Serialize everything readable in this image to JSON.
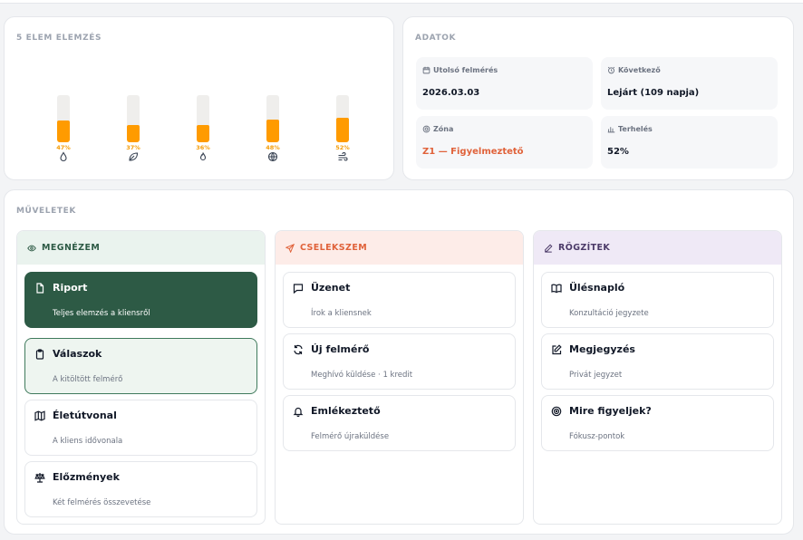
{
  "chart_section": {
    "title": "5 ELEM ELEMZÉS"
  },
  "chart_data": {
    "type": "bar",
    "categories": [
      "Víz",
      "Fa",
      "Tűz",
      "Föld",
      "Fém"
    ],
    "values": [
      47,
      37,
      36,
      48,
      52
    ],
    "labels": [
      "47%",
      "37%",
      "36%",
      "48%",
      "52%"
    ],
    "icons": [
      "water-drop-icon",
      "leaf-icon",
      "flame-icon",
      "globe-icon",
      "wind-icon"
    ],
    "ylim": [
      0,
      100
    ],
    "colors": {
      "fill": "#ff9b00",
      "track": "#efeeec"
    },
    "title": "5 ELEM ELEMZÉS"
  },
  "data_section": {
    "title": "ADATOK",
    "tiles": [
      {
        "label": "Utolsó felmérés",
        "value": "2026.03.03",
        "icon": "calendar-icon"
      },
      {
        "label": "Következő",
        "value": "Lejárt (109 napja)",
        "icon": "alarm-clock-icon"
      },
      {
        "label": "Zóna",
        "value": "Z1 — Figyelmeztető",
        "icon": "target-icon",
        "value_color": "#e0623a"
      },
      {
        "label": "Terhelés",
        "value": "52%",
        "icon": "bar-chart-icon"
      }
    ]
  },
  "operations": {
    "title": "MŰVELETEK",
    "columns": [
      {
        "title": "MEGNÉZEM",
        "icon": "eye-icon",
        "head_bg": "#eaf3ee",
        "head_color": "#2d5a45",
        "items": [
          {
            "title": "Riport",
            "sub": "Teljes elemzés a kliensről",
            "icon": "document-icon"
          },
          {
            "title": "Válaszok",
            "sub": "A kitöltött felmérő",
            "icon": "clipboard-icon"
          },
          {
            "title": "Életútvonal",
            "sub": "A kliens idővonala",
            "icon": "map-icon"
          },
          {
            "title": "Előzmények",
            "sub": "Két felmérés összevetése",
            "icon": "scale-icon"
          }
        ]
      },
      {
        "title": "CSELEKSZEM",
        "icon": "send-icon",
        "head_bg": "#fdece8",
        "head_color": "#e0623a",
        "items": [
          {
            "title": "Üzenet",
            "sub": "Írok a kliensnek",
            "icon": "message-icon"
          },
          {
            "title": "Új felmérő",
            "sub": "Meghívó küldése · 1 kredit",
            "icon": "refresh-icon"
          },
          {
            "title": "Emlékeztető",
            "sub": "Felmérő újraküldése",
            "icon": "bell-icon"
          }
        ]
      },
      {
        "title": "RÖGZÍTEK",
        "icon": "pencil-icon",
        "head_bg": "#efe9f6",
        "head_color": "#4b3a68",
        "items": [
          {
            "title": "Ülésnapló",
            "sub": "Konzultáció jegyzete",
            "icon": "book-icon"
          },
          {
            "title": "Megjegyzés",
            "sub": "Privát jegyzet",
            "icon": "edit-icon"
          },
          {
            "title": "Mire figyeljek?",
            "sub": "Fókusz-pontok",
            "icon": "focus-icon"
          }
        ]
      }
    ]
  }
}
